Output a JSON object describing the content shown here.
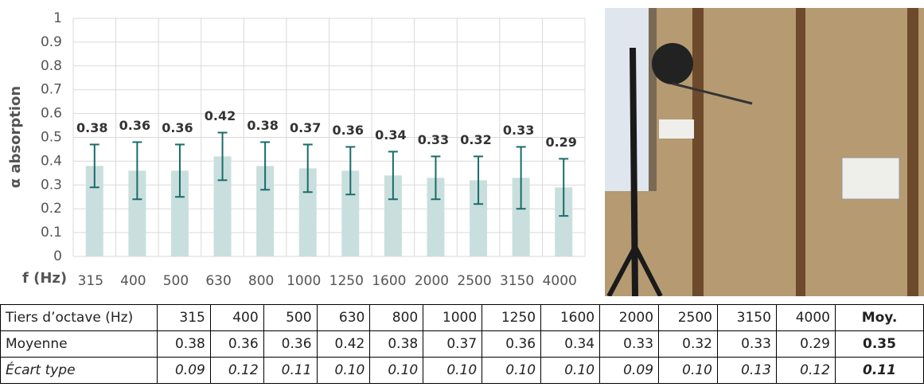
{
  "chart_data": {
    "type": "bar",
    "y_label": "α absorption",
    "x_label": "f (Hz)",
    "categories": [
      "315",
      "400",
      "500",
      "630",
      "800",
      "1000",
      "1250",
      "1600",
      "2000",
      "2500",
      "3150",
      "4000"
    ],
    "values": [
      0.38,
      0.36,
      0.36,
      0.42,
      0.38,
      0.37,
      0.36,
      0.34,
      0.33,
      0.32,
      0.33,
      0.29
    ],
    "errors": [
      0.09,
      0.12,
      0.11,
      0.1,
      0.1,
      0.1,
      0.1,
      0.1,
      0.09,
      0.1,
      0.13,
      0.12
    ],
    "color": "#c9dfdd",
    "error_color": "#1a6b6b",
    "ylim": [
      0,
      1
    ],
    "yticks": [
      0,
      0.1,
      0.2,
      0.3,
      0.4,
      0.5,
      0.6,
      0.7,
      0.8,
      0.9,
      1
    ],
    "grid": true
  },
  "table": {
    "header": [
      "Tiers d’octave (Hz)",
      "315",
      "400",
      "500",
      "630",
      "800",
      "1000",
      "1250",
      "1600",
      "2000",
      "2500",
      "3150",
      "4000",
      "Moy."
    ],
    "rows": [
      [
        "Moyenne",
        "0.38",
        "0.36",
        "0.36",
        "0.42",
        "0.38",
        "0.37",
        "0.36",
        "0.34",
        "0.33",
        "0.32",
        "0.33",
        "0.29",
        "0.35"
      ],
      [
        "Écart type",
        "0.09",
        "0.12",
        "0.11",
        "0.10",
        "0.10",
        "0.10",
        "0.10",
        "0.10",
        "0.09",
        "0.10",
        "0.13",
        "0.12",
        "0.11"
      ]
    ]
  }
}
